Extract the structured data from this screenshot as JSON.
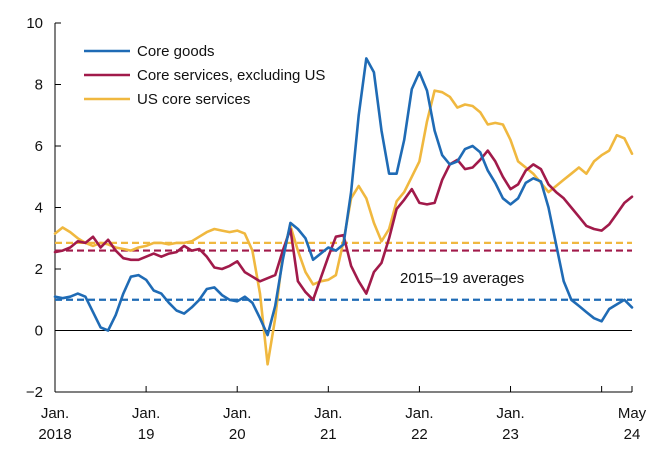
{
  "chart_data": {
    "type": "line",
    "title": "",
    "xlabel": "",
    "ylabel": "",
    "ylim": [
      -2,
      10
    ],
    "xlim": [
      "2018-01",
      "2024-05"
    ],
    "yticks": [
      -2,
      0,
      2,
      4,
      6,
      8,
      10
    ],
    "ytick_labels": [
      "−2",
      "0",
      "2",
      "4",
      "6",
      "8",
      "10"
    ],
    "xticks": [
      {
        "x": "2018-01",
        "line1": "Jan.",
        "line2": "2018"
      },
      {
        "x": "2019-01",
        "line1": "Jan.",
        "line2": "19"
      },
      {
        "x": "2020-01",
        "line1": "Jan.",
        "line2": "20"
      },
      {
        "x": "2021-01",
        "line1": "Jan.",
        "line2": "21"
      },
      {
        "x": "2022-01",
        "line1": "Jan.",
        "line2": "22"
      },
      {
        "x": "2023-01",
        "line1": "Jan.",
        "line2": "23"
      },
      {
        "x": "2024-05",
        "line1": "May",
        "line2": "24"
      }
    ],
    "legend_position": "top-left",
    "annotation": "2015–19 averages",
    "series": [
      {
        "name": "Core goods",
        "color": "#1f6bb5",
        "average": 1.0,
        "points": [
          [
            "2018-01",
            1.1
          ],
          [
            "2018-02",
            1.05
          ],
          [
            "2018-03",
            1.1
          ],
          [
            "2018-04",
            1.2
          ],
          [
            "2018-05",
            1.1
          ],
          [
            "2018-06",
            0.6
          ],
          [
            "2018-07",
            0.1
          ],
          [
            "2018-08",
            0.0
          ],
          [
            "2018-09",
            0.5
          ],
          [
            "2018-10",
            1.2
          ],
          [
            "2018-11",
            1.75
          ],
          [
            "2018-12",
            1.8
          ],
          [
            "2019-01",
            1.65
          ],
          [
            "2019-02",
            1.3
          ],
          [
            "2019-03",
            1.2
          ],
          [
            "2019-04",
            0.9
          ],
          [
            "2019-05",
            0.65
          ],
          [
            "2019-06",
            0.55
          ],
          [
            "2019-07",
            0.75
          ],
          [
            "2019-08",
            1.0
          ],
          [
            "2019-09",
            1.35
          ],
          [
            "2019-10",
            1.4
          ],
          [
            "2019-11",
            1.15
          ],
          [
            "2019-12",
            1.0
          ],
          [
            "2020-01",
            0.95
          ],
          [
            "2020-02",
            1.1
          ],
          [
            "2020-03",
            0.9
          ],
          [
            "2020-04",
            0.4
          ],
          [
            "2020-05",
            -0.15
          ],
          [
            "2020-06",
            0.8
          ],
          [
            "2020-07",
            2.3
          ],
          [
            "2020-08",
            3.5
          ],
          [
            "2020-09",
            3.3
          ],
          [
            "2020-10",
            3.0
          ],
          [
            "2020-11",
            2.3
          ],
          [
            "2020-12",
            2.5
          ],
          [
            "2021-01",
            2.7
          ],
          [
            "2021-02",
            2.6
          ],
          [
            "2021-03",
            2.8
          ],
          [
            "2021-04",
            4.5
          ],
          [
            "2021-05",
            7.0
          ],
          [
            "2021-06",
            8.85
          ],
          [
            "2021-07",
            8.4
          ],
          [
            "2021-08",
            6.5
          ],
          [
            "2021-09",
            5.1
          ],
          [
            "2021-10",
            5.1
          ],
          [
            "2021-11",
            6.2
          ],
          [
            "2021-12",
            7.85
          ],
          [
            "2022-01",
            8.4
          ],
          [
            "2022-02",
            7.8
          ],
          [
            "2022-03",
            6.5
          ],
          [
            "2022-04",
            5.7
          ],
          [
            "2022-05",
            5.4
          ],
          [
            "2022-06",
            5.5
          ],
          [
            "2022-07",
            5.9
          ],
          [
            "2022-08",
            6.0
          ],
          [
            "2022-09",
            5.8
          ],
          [
            "2022-10",
            5.2
          ],
          [
            "2022-11",
            4.8
          ],
          [
            "2022-12",
            4.3
          ],
          [
            "2023-01",
            4.1
          ],
          [
            "2023-02",
            4.3
          ],
          [
            "2023-03",
            4.8
          ],
          [
            "2023-04",
            4.95
          ],
          [
            "2023-05",
            4.85
          ],
          [
            "2023-06",
            4.0
          ],
          [
            "2023-07",
            2.8
          ],
          [
            "2023-08",
            1.6
          ],
          [
            "2023-09",
            1.0
          ],
          [
            "2023-10",
            0.8
          ],
          [
            "2023-11",
            0.6
          ],
          [
            "2023-12",
            0.4
          ],
          [
            "2024-01",
            0.3
          ],
          [
            "2024-02",
            0.7
          ],
          [
            "2024-03",
            0.85
          ],
          [
            "2024-04",
            1.0
          ],
          [
            "2024-05",
            0.75
          ]
        ]
      },
      {
        "name": "Core services, excluding US",
        "color": "#a11a4a",
        "average": 2.6,
        "points": [
          [
            "2018-01",
            2.55
          ],
          [
            "2018-02",
            2.6
          ],
          [
            "2018-03",
            2.7
          ],
          [
            "2018-04",
            2.9
          ],
          [
            "2018-05",
            2.85
          ],
          [
            "2018-06",
            3.05
          ],
          [
            "2018-07",
            2.7
          ],
          [
            "2018-08",
            2.95
          ],
          [
            "2018-09",
            2.6
          ],
          [
            "2018-10",
            2.35
          ],
          [
            "2018-11",
            2.3
          ],
          [
            "2018-12",
            2.3
          ],
          [
            "2019-01",
            2.4
          ],
          [
            "2019-02",
            2.5
          ],
          [
            "2019-03",
            2.4
          ],
          [
            "2019-04",
            2.5
          ],
          [
            "2019-05",
            2.55
          ],
          [
            "2019-06",
            2.75
          ],
          [
            "2019-07",
            2.6
          ],
          [
            "2019-08",
            2.65
          ],
          [
            "2019-09",
            2.4
          ],
          [
            "2019-10",
            2.05
          ],
          [
            "2019-11",
            2.0
          ],
          [
            "2019-12",
            2.1
          ],
          [
            "2020-01",
            2.25
          ],
          [
            "2020-02",
            1.9
          ],
          [
            "2020-03",
            1.75
          ],
          [
            "2020-04",
            1.6
          ],
          [
            "2020-05",
            1.7
          ],
          [
            "2020-06",
            1.8
          ],
          [
            "2020-07",
            2.6
          ],
          [
            "2020-08",
            3.3
          ],
          [
            "2020-09",
            1.6
          ],
          [
            "2020-10",
            1.25
          ],
          [
            "2020-11",
            1.0
          ],
          [
            "2020-12",
            1.7
          ],
          [
            "2021-01",
            2.4
          ],
          [
            "2021-02",
            3.05
          ],
          [
            "2021-03",
            3.1
          ],
          [
            "2021-04",
            2.1
          ],
          [
            "2021-05",
            1.6
          ],
          [
            "2021-06",
            1.2
          ],
          [
            "2021-07",
            1.9
          ],
          [
            "2021-08",
            2.2
          ],
          [
            "2021-09",
            3.0
          ],
          [
            "2021-10",
            3.95
          ],
          [
            "2021-11",
            4.25
          ],
          [
            "2021-12",
            4.6
          ],
          [
            "2022-01",
            4.15
          ],
          [
            "2022-02",
            4.1
          ],
          [
            "2022-03",
            4.15
          ],
          [
            "2022-04",
            4.9
          ],
          [
            "2022-05",
            5.4
          ],
          [
            "2022-06",
            5.55
          ],
          [
            "2022-07",
            5.25
          ],
          [
            "2022-08",
            5.3
          ],
          [
            "2022-09",
            5.55
          ],
          [
            "2022-10",
            5.85
          ],
          [
            "2022-11",
            5.5
          ],
          [
            "2022-12",
            5.0
          ],
          [
            "2023-01",
            4.6
          ],
          [
            "2023-02",
            4.75
          ],
          [
            "2023-03",
            5.2
          ],
          [
            "2023-04",
            5.4
          ],
          [
            "2023-05",
            5.25
          ],
          [
            "2023-06",
            4.75
          ],
          [
            "2023-07",
            4.5
          ],
          [
            "2023-08",
            4.3
          ],
          [
            "2023-09",
            4.0
          ],
          [
            "2023-10",
            3.7
          ],
          [
            "2023-11",
            3.4
          ],
          [
            "2023-12",
            3.3
          ],
          [
            "2024-01",
            3.25
          ],
          [
            "2024-02",
            3.45
          ],
          [
            "2024-03",
            3.8
          ],
          [
            "2024-04",
            4.15
          ],
          [
            "2024-05",
            4.35
          ]
        ]
      },
      {
        "name": "US core services",
        "color": "#f0b83f",
        "average": 2.85,
        "points": [
          [
            "2018-01",
            3.15
          ],
          [
            "2018-02",
            3.35
          ],
          [
            "2018-03",
            3.2
          ],
          [
            "2018-04",
            3.0
          ],
          [
            "2018-05",
            2.85
          ],
          [
            "2018-06",
            2.75
          ],
          [
            "2018-07",
            2.85
          ],
          [
            "2018-08",
            2.8
          ],
          [
            "2018-09",
            2.7
          ],
          [
            "2018-10",
            2.65
          ],
          [
            "2018-11",
            2.6
          ],
          [
            "2018-12",
            2.7
          ],
          [
            "2019-01",
            2.75
          ],
          [
            "2019-02",
            2.85
          ],
          [
            "2019-03",
            2.85
          ],
          [
            "2019-04",
            2.8
          ],
          [
            "2019-05",
            2.85
          ],
          [
            "2019-06",
            2.85
          ],
          [
            "2019-07",
            2.9
          ],
          [
            "2019-08",
            3.05
          ],
          [
            "2019-09",
            3.2
          ],
          [
            "2019-10",
            3.3
          ],
          [
            "2019-11",
            3.25
          ],
          [
            "2019-12",
            3.2
          ],
          [
            "2020-01",
            3.25
          ],
          [
            "2020-02",
            3.15
          ],
          [
            "2020-03",
            2.6
          ],
          [
            "2020-04",
            1.2
          ],
          [
            "2020-05",
            -1.1
          ],
          [
            "2020-06",
            0.4
          ],
          [
            "2020-07",
            2.5
          ],
          [
            "2020-08",
            3.4
          ],
          [
            "2020-09",
            2.6
          ],
          [
            "2020-10",
            1.9
          ],
          [
            "2020-11",
            1.5
          ],
          [
            "2020-12",
            1.6
          ],
          [
            "2021-01",
            1.65
          ],
          [
            "2021-02",
            1.8
          ],
          [
            "2021-03",
            2.9
          ],
          [
            "2021-04",
            4.3
          ],
          [
            "2021-05",
            4.7
          ],
          [
            "2021-06",
            4.3
          ],
          [
            "2021-07",
            3.5
          ],
          [
            "2021-08",
            2.9
          ],
          [
            "2021-09",
            3.3
          ],
          [
            "2021-10",
            4.2
          ],
          [
            "2021-11",
            4.5
          ],
          [
            "2021-12",
            5.0
          ],
          [
            "2022-01",
            5.5
          ],
          [
            "2022-02",
            6.8
          ],
          [
            "2022-03",
            7.8
          ],
          [
            "2022-04",
            7.75
          ],
          [
            "2022-05",
            7.6
          ],
          [
            "2022-06",
            7.25
          ],
          [
            "2022-07",
            7.35
          ],
          [
            "2022-08",
            7.3
          ],
          [
            "2022-09",
            7.1
          ],
          [
            "2022-10",
            6.7
          ],
          [
            "2022-11",
            6.75
          ],
          [
            "2022-12",
            6.7
          ],
          [
            "2023-01",
            6.2
          ],
          [
            "2023-02",
            5.5
          ],
          [
            "2023-03",
            5.3
          ],
          [
            "2023-04",
            5.1
          ],
          [
            "2023-05",
            4.8
          ],
          [
            "2023-06",
            4.5
          ],
          [
            "2023-07",
            4.7
          ],
          [
            "2023-08",
            4.9
          ],
          [
            "2023-09",
            5.1
          ],
          [
            "2023-10",
            5.3
          ],
          [
            "2023-11",
            5.1
          ],
          [
            "2023-12",
            5.5
          ],
          [
            "2024-01",
            5.7
          ],
          [
            "2024-02",
            5.85
          ],
          [
            "2024-03",
            6.35
          ],
          [
            "2024-04",
            6.25
          ],
          [
            "2024-05",
            5.75
          ]
        ]
      }
    ]
  }
}
